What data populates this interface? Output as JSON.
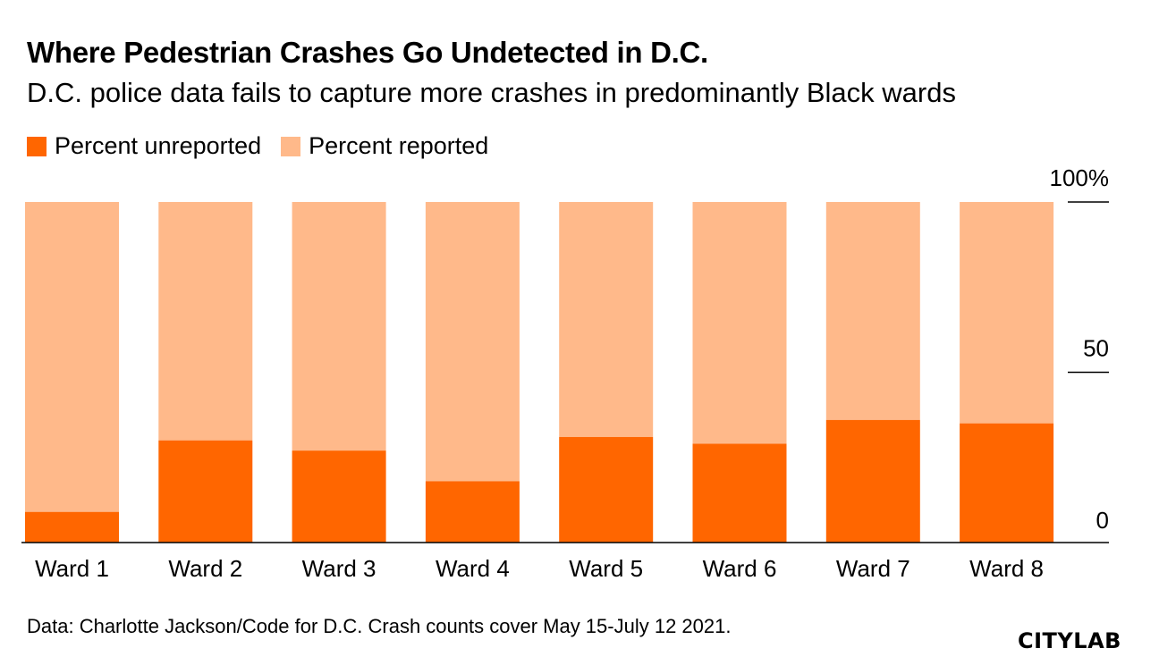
{
  "header": {
    "title": "Where Pedestrian Crashes Go Undetected in D.C.",
    "subtitle": "D.C. police data fails to capture more crashes in predominantly Black wards"
  },
  "legend": {
    "unreported_label": "Percent unreported",
    "reported_label": "Percent reported"
  },
  "colors": {
    "unreported": "#ff6600",
    "reported": "#ffb98a",
    "axis": "#000000"
  },
  "footer": {
    "source": "Data: Charlotte Jackson/Code for D.C. Crash counts cover May 15-July 12 2021.",
    "logo": "CITYLAB"
  },
  "chart_data": {
    "type": "bar",
    "stacked": true,
    "categories": [
      "Ward 1",
      "Ward 2",
      "Ward 3",
      "Ward 4",
      "Ward 5",
      "Ward 6",
      "Ward 7",
      "Ward 8"
    ],
    "series": [
      {
        "name": "Percent unreported",
        "values": [
          9,
          30,
          27,
          18,
          31,
          29,
          36,
          35
        ]
      },
      {
        "name": "Percent reported",
        "values": [
          91,
          70,
          73,
          82,
          69,
          71,
          64,
          65
        ]
      }
    ],
    "ylim": [
      0,
      100
    ],
    "yticks": [
      {
        "value": 0,
        "label": "0"
      },
      {
        "value": 50,
        "label": "50"
      },
      {
        "value": 100,
        "label": "100%"
      }
    ],
    "xlabel": "",
    "ylabel": "",
    "legend_position": "top-left"
  }
}
